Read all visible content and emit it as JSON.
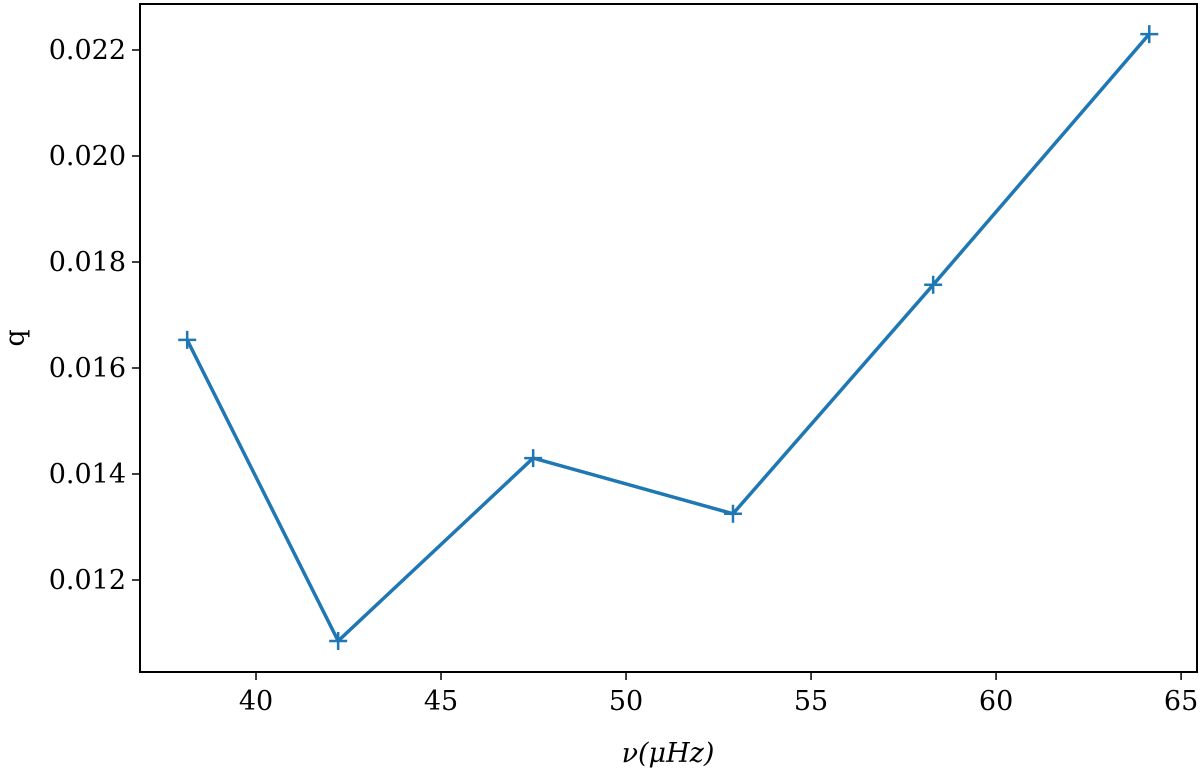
{
  "chart_data": {
    "type": "line",
    "x_label": "ν(μHz)",
    "y_label": "q",
    "x": [
      38.14,
      42.22,
      47.49,
      52.89,
      58.3,
      64.14
    ],
    "series": [
      {
        "color": "#1f77b4",
        "values": [
          0.01653,
          0.01085,
          0.0143,
          0.01325,
          0.01757,
          0.0223
        ]
      }
    ],
    "xlim": [
      36.865,
      65.43
    ],
    "xticks": [
      40,
      45,
      50,
      55,
      60,
      65
    ],
    "ylim": [
      0.010264,
      0.022868
    ],
    "yticks": [
      0.012,
      0.014,
      0.016,
      0.018,
      {
        "value": 0.02,
        "label": "0.020"
      },
      0.022
    ],
    "marker": "+"
  }
}
